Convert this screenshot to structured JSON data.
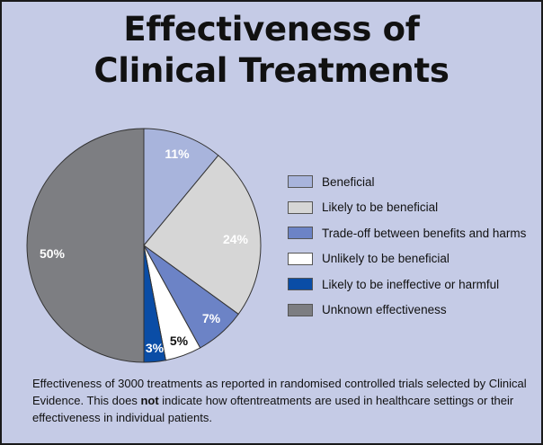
{
  "chart_data": {
    "type": "pie",
    "title": [
      "Effectiveness of",
      "Clinical Treatments"
    ],
    "slices": [
      {
        "label": "Beneficial",
        "value": 11,
        "display": "11%",
        "color": "#a8b4dc",
        "text_color": "#ffffff"
      },
      {
        "label": "Likely to be beneficial",
        "value": 24,
        "display": "24%",
        "color": "#d6d6d6",
        "text_color": "#ffffff"
      },
      {
        "label": "Trade-off between benefits and harms",
        "value": 7,
        "display": "7%",
        "color": "#6c83c6",
        "text_color": "#ffffff"
      },
      {
        "label": "Unlikely to be beneficial",
        "value": 5,
        "display": "5%",
        "color": "#ffffff",
        "text_color": "#111111"
      },
      {
        "label": "Likely to be ineffective or harmful",
        "value": 3,
        "display": "3%",
        "color": "#0a4da6",
        "text_color": "#ffffff"
      },
      {
        "label": "Unknown effectiveness",
        "value": 50,
        "display": "50%",
        "color": "#7d7e82",
        "text_color": "#ffffff"
      }
    ],
    "legend_position": "right"
  },
  "caption": {
    "part1": "Effectiveness of 3000 treatments as reported in randomised controlled trials selected by Clinical Evidence. This does ",
    "bold": "not",
    "part2": " indicate how oftentreatments are used in healthcare settings or their effectiveness in individual patients."
  },
  "colors": {
    "background": "#c5cbe6",
    "border": "#1a1a1a",
    "pie_outline": "#333333"
  }
}
